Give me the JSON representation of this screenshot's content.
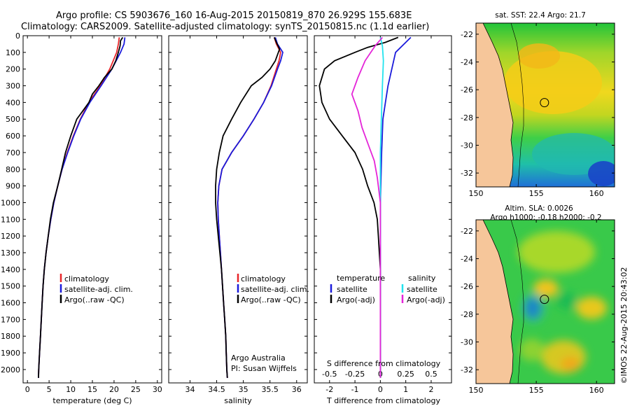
{
  "header": {
    "line1": "Argo profile: CS 5903676_160 16-Aug-2015 20150819_870 26.929S 155.683E",
    "line2": "Climatology: CARS2009. Satellite-adjusted climatology: synTS_20150815.nc (1.1d earlier)"
  },
  "credit": {
    "org": "Argo Australia",
    "pi": "PI: Susan Wijffels"
  },
  "watermark": "©IMOS 22-Aug-2015 20:43:02",
  "colors": {
    "climatology": "#e8262a",
    "satellite": "#1a1adb",
    "argo": "#000000",
    "satellite_s": "#22e3ee",
    "argo_s": "#e425d8",
    "land": "#f6c69a"
  },
  "chart_data": [
    {
      "id": "temperature",
      "type": "line",
      "xlabel": "temperature (deg C)",
      "ylabel": "",
      "xlim": [
        -1,
        31
      ],
      "ylim": [
        2080,
        0
      ],
      "xticks": [
        0,
        5,
        10,
        15,
        20,
        25,
        30
      ],
      "yticks": [
        0,
        100,
        200,
        300,
        400,
        500,
        600,
        700,
        800,
        900,
        1000,
        1100,
        1200,
        1300,
        1400,
        1500,
        1600,
        1700,
        1800,
        1900,
        2000
      ],
      "legend": [
        "climatology",
        "satellite-adj. clim.",
        "Argo(..raw -QC)"
      ],
      "legend_position": "lower-center",
      "series": [
        {
          "name": "climatology",
          "color": "#e8262a",
          "points": [
            [
              21.2,
              10
            ],
            [
              21.0,
              50
            ],
            [
              20.6,
              100
            ],
            [
              19.0,
              200
            ],
            [
              16.8,
              300
            ],
            [
              14.2,
              400
            ],
            [
              12.2,
              500
            ],
            [
              10.6,
              600
            ],
            [
              9.2,
              700
            ],
            [
              8.0,
              800
            ],
            [
              7.0,
              900
            ],
            [
              6.1,
              1000
            ],
            [
              5.4,
              1100
            ],
            [
              4.8,
              1200
            ],
            [
              4.3,
              1300
            ],
            [
              3.9,
              1400
            ],
            [
              3.6,
              1500
            ],
            [
              3.4,
              1600
            ],
            [
              3.2,
              1700
            ],
            [
              3.0,
              1800
            ],
            [
              2.8,
              1900
            ],
            [
              2.6,
              2000
            ],
            [
              2.55,
              2050
            ]
          ]
        },
        {
          "name": "satellite-adj. clim.",
          "color": "#1a1adb",
          "points": [
            [
              22.5,
              10
            ],
            [
              22.3,
              50
            ],
            [
              21.5,
              100
            ],
            [
              19.5,
              200
            ],
            [
              17.0,
              300
            ],
            [
              14.4,
              400
            ],
            [
              12.3,
              500
            ],
            [
              10.7,
              600
            ],
            [
              9.3,
              700
            ],
            [
              8.0,
              800
            ],
            [
              7.0,
              900
            ],
            [
              6.1,
              1000
            ],
            [
              5.4,
              1100
            ],
            [
              4.8,
              1200
            ],
            [
              4.3,
              1300
            ],
            [
              3.9,
              1400
            ],
            [
              3.6,
              1500
            ],
            [
              3.4,
              1600
            ],
            [
              3.2,
              1700
            ],
            [
              3.0,
              1800
            ],
            [
              2.8,
              1900
            ],
            [
              2.6,
              2000
            ],
            [
              2.55,
              2050
            ]
          ]
        },
        {
          "name": "Argo(..raw -QC)",
          "color": "#000000",
          "points": [
            [
              22.0,
              10
            ],
            [
              21.5,
              30
            ],
            [
              21.4,
              60
            ],
            [
              21.0,
              100
            ],
            [
              20.4,
              150
            ],
            [
              19.5,
              200
            ],
            [
              17.8,
              250
            ],
            [
              16.5,
              300
            ],
            [
              15.0,
              350
            ],
            [
              14.2,
              400
            ],
            [
              12.8,
              450
            ],
            [
              11.4,
              500
            ],
            [
              10.0,
              600
            ],
            [
              8.8,
              700
            ],
            [
              7.9,
              800
            ],
            [
              7.0,
              900
            ],
            [
              6.0,
              1000
            ],
            [
              5.3,
              1100
            ],
            [
              4.8,
              1200
            ],
            [
              4.3,
              1300
            ],
            [
              3.9,
              1400
            ],
            [
              3.6,
              1500
            ],
            [
              3.4,
              1600
            ],
            [
              3.2,
              1700
            ],
            [
              3.0,
              1800
            ],
            [
              2.8,
              1900
            ],
            [
              2.6,
              2000
            ],
            [
              2.55,
              2050
            ]
          ]
        }
      ]
    },
    {
      "id": "salinity",
      "type": "line",
      "xlabel": "salinity",
      "xlim": [
        33.6,
        36.2
      ],
      "ylim": [
        2080,
        0
      ],
      "xticks": [
        34,
        34.5,
        35,
        35.5,
        36
      ],
      "legend": [
        "climatology",
        "satellite-adj. clim.",
        "Argo(..raw -QC)"
      ],
      "legend_position": "lower-right",
      "series": [
        {
          "name": "climatology",
          "color": "#e8262a",
          "points": [
            [
              35.58,
              10
            ],
            [
              35.62,
              50
            ],
            [
              35.7,
              100
            ],
            [
              35.67,
              150
            ],
            [
              35.62,
              200
            ],
            [
              35.52,
              300
            ],
            [
              35.38,
              400
            ],
            [
              35.2,
              500
            ],
            [
              35.0,
              600
            ],
            [
              34.78,
              700
            ],
            [
              34.6,
              800
            ],
            [
              34.54,
              900
            ],
            [
              34.52,
              1000
            ],
            [
              34.53,
              1100
            ],
            [
              34.55,
              1200
            ],
            [
              34.57,
              1300
            ],
            [
              34.59,
              1400
            ],
            [
              34.61,
              1500
            ],
            [
              34.63,
              1600
            ],
            [
              34.65,
              1700
            ],
            [
              34.67,
              1800
            ],
            [
              34.68,
              1900
            ],
            [
              34.69,
              2000
            ],
            [
              34.7,
              2050
            ]
          ]
        },
        {
          "name": "satellite-adj. clim.",
          "color": "#1a1adb",
          "points": [
            [
              35.6,
              10
            ],
            [
              35.64,
              50
            ],
            [
              35.74,
              100
            ],
            [
              35.7,
              150
            ],
            [
              35.64,
              200
            ],
            [
              35.53,
              300
            ],
            [
              35.38,
              400
            ],
            [
              35.2,
              500
            ],
            [
              35.0,
              600
            ],
            [
              34.78,
              700
            ],
            [
              34.6,
              800
            ],
            [
              34.54,
              900
            ],
            [
              34.52,
              1000
            ],
            [
              34.53,
              1100
            ],
            [
              34.55,
              1200
            ],
            [
              34.57,
              1300
            ],
            [
              34.59,
              1400
            ],
            [
              34.61,
              1500
            ],
            [
              34.63,
              1600
            ],
            [
              34.65,
              1700
            ],
            [
              34.67,
              1800
            ],
            [
              34.68,
              1900
            ],
            [
              34.69,
              2000
            ],
            [
              34.7,
              2050
            ]
          ]
        },
        {
          "name": "Argo(..raw -QC)",
          "color": "#000000",
          "points": [
            [
              35.58,
              10
            ],
            [
              35.62,
              40
            ],
            [
              35.68,
              80
            ],
            [
              35.6,
              150
            ],
            [
              35.5,
              200
            ],
            [
              35.35,
              250
            ],
            [
              35.15,
              300
            ],
            [
              34.95,
              400
            ],
            [
              34.78,
              500
            ],
            [
              34.62,
              600
            ],
            [
              34.55,
              700
            ],
            [
              34.5,
              800
            ],
            [
              34.48,
              900
            ],
            [
              34.48,
              1000
            ],
            [
              34.5,
              1100
            ],
            [
              34.53,
              1200
            ],
            [
              34.56,
              1300
            ],
            [
              34.59,
              1400
            ],
            [
              34.61,
              1500
            ],
            [
              34.63,
              1600
            ],
            [
              34.65,
              1700
            ],
            [
              34.67,
              1800
            ],
            [
              34.68,
              1900
            ],
            [
              34.69,
              2000
            ],
            [
              34.7,
              2050
            ]
          ]
        }
      ]
    },
    {
      "id": "differences",
      "type": "line",
      "xlabel_top": "S difference from climatology",
      "xlabel": "T difference from climatology",
      "xlim_T": [
        -2.6,
        2.8
      ],
      "xticks_T": [
        -2,
        -1,
        0,
        1,
        2
      ],
      "xticks_S": [
        -0.5,
        -0.25,
        0,
        0.25,
        0.5
      ],
      "xticklabels_S": [
        "-0.5",
        "-0.25",
        "0",
        "0.25",
        "0.5"
      ],
      "ylim": [
        2080,
        0
      ],
      "legend_groups": [
        "temperature",
        "salinity"
      ],
      "legend": [
        "satellite",
        "Argo(-adj)",
        "satellite",
        "Argo(-adj)"
      ],
      "legend_position": "lower-center",
      "series": [
        {
          "name": "satellite",
          "group": "temperature",
          "color": "#1a1adb",
          "points": [
            [
              1.2,
              10
            ],
            [
              1.0,
              40
            ],
            [
              0.6,
              100
            ],
            [
              0.45,
              200
            ],
            [
              0.3,
              300
            ],
            [
              0.2,
              400
            ],
            [
              0.1,
              500
            ],
            [
              0.05,
              700
            ],
            [
              0.0,
              1000
            ],
            [
              0.0,
              2050
            ]
          ]
        },
        {
          "name": "Argo(-adj)",
          "group": "temperature",
          "color": "#000000",
          "points": [
            [
              0.7,
              10
            ],
            [
              0.2,
              40
            ],
            [
              -0.5,
              70
            ],
            [
              -1.0,
              100
            ],
            [
              -1.8,
              150
            ],
            [
              -2.2,
              200
            ],
            [
              -2.4,
              300
            ],
            [
              -2.3,
              400
            ],
            [
              -2.0,
              500
            ],
            [
              -1.5,
              600
            ],
            [
              -1.0,
              700
            ],
            [
              -0.7,
              800
            ],
            [
              -0.5,
              900
            ],
            [
              -0.25,
              1000
            ],
            [
              -0.12,
              1100
            ],
            [
              -0.08,
              1200
            ],
            [
              -0.04,
              1300
            ],
            [
              0.0,
              1400
            ],
            [
              0.0,
              2050
            ]
          ]
        },
        {
          "name": "satellite",
          "group": "salinity",
          "color": "#22e3ee",
          "points": [
            [
              0.0,
              10
            ],
            [
              0.02,
              60
            ],
            [
              0.03,
              150
            ],
            [
              0.02,
              300
            ],
            [
              0.01,
              500
            ],
            [
              0.0,
              700
            ],
            [
              0.0,
              2050
            ]
          ]
        },
        {
          "name": "Argo(-adj)",
          "group": "salinity",
          "color": "#e425d8",
          "points": [
            [
              0.02,
              10
            ],
            [
              -0.05,
              60
            ],
            [
              -0.15,
              150
            ],
            [
              -0.22,
              250
            ],
            [
              -0.28,
              350
            ],
            [
              -0.22,
              450
            ],
            [
              -0.18,
              550
            ],
            [
              -0.12,
              650
            ],
            [
              -0.06,
              750
            ],
            [
              -0.03,
              850
            ],
            [
              0.0,
              1000
            ],
            [
              0.0,
              2050
            ]
          ]
        }
      ]
    },
    {
      "id": "sst_map",
      "type": "heatmap",
      "title": "sat. SST: 22.4  Argo: 21.7",
      "xlim": [
        150,
        161.5
      ],
      "ylim": [
        -33,
        -21.2
      ],
      "xticks": [
        150,
        155,
        160
      ],
      "yticks": [
        -22,
        -24,
        -26,
        -28,
        -30,
        -32
      ],
      "argo_position": [
        155.68,
        -26.93
      ]
    },
    {
      "id": "sla_map",
      "type": "heatmap",
      "title": "Altim. SLA: 0.0026",
      "subtitle": "Argo h1000: -0.18  h2000: -0.2",
      "xlim": [
        150,
        161.5
      ],
      "ylim": [
        -33,
        -21.2
      ],
      "xticks": [
        150,
        155,
        160
      ],
      "yticks": [
        -22,
        -24,
        -26,
        -28,
        -30,
        -32
      ],
      "argo_position": [
        155.68,
        -26.93
      ]
    }
  ]
}
